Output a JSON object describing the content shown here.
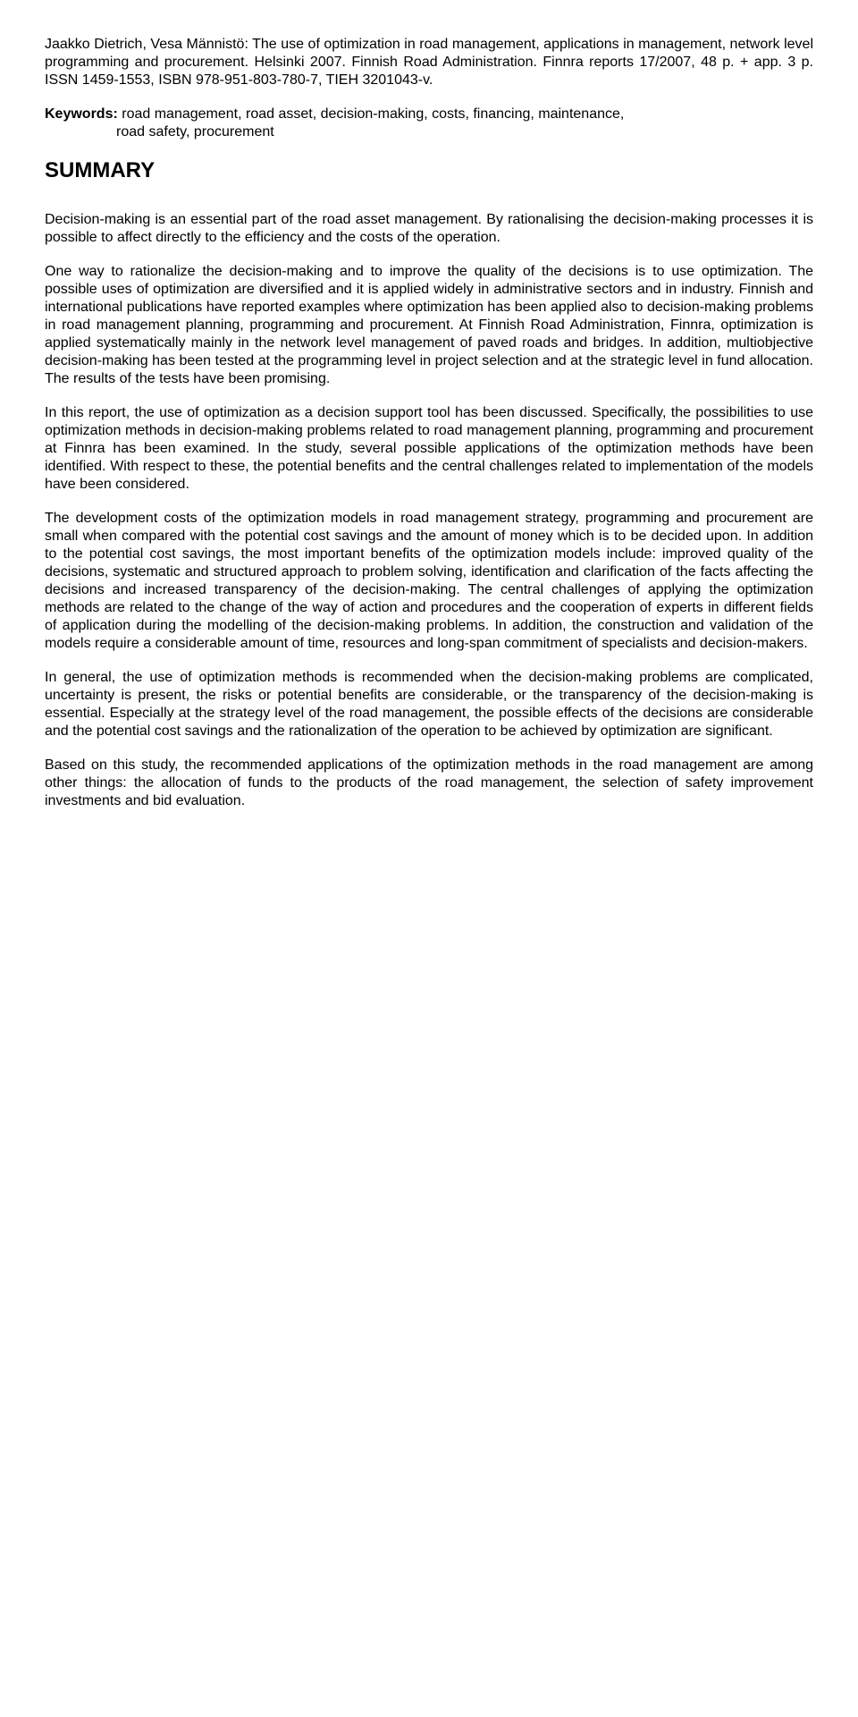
{
  "citation": {
    "authors_title": "Jaakko Dietrich, Vesa Männistö: The use of optimization in road management, applications in management, network level programming and procurement.",
    "pub_info": "Helsinki 2007. Finnish Road Administration. Finnra reports 17/2007, 48 p. + app. 3 p. ISSN 1459-1553, ISBN 978-951-803-780-7, TIEH 3201043-v."
  },
  "keywords": {
    "label": "Keywords:",
    "line1": "road management, road asset, decision-making, costs, financing, maintenance,",
    "line2": "road safety, procurement"
  },
  "summary_heading": "SUMMARY",
  "paragraphs": {
    "p1": "Decision-making is an essential part of the road asset management. By rationalising the decision-making processes it is possible to affect directly to the efficiency and the costs of the operation.",
    "p2": "One way to rationalize the decision-making and to improve the quality of the decisions is to use optimization. The possible uses of optimization are diversified and it is applied widely in administrative sectors and in industry. Finnish and international publications have reported examples where optimization has been applied also to decision-making problems in road management planning, programming and procurement. At Finnish Road Administration, Finnra, optimization is applied systematically mainly in the network level management of paved roads and bridges. In addition, multiobjective decision-making has been tested at the programming level in project selection and at the strategic level in fund allocation. The results of the tests have been promising.",
    "p3": "In this report, the use of optimization as a decision support tool has been discussed. Specifically, the possibilities to use optimization methods in decision-making problems related to road management planning, programming and procurement at Finnra has been examined. In the study, several possible applications of the optimization methods have been identified. With respect to these, the potential benefits and the central challenges related to implementation of the models have been considered.",
    "p4": "The development costs of the optimization models in road management strategy, programming and procurement are small when compared with the potential cost savings and the amount of money which is to be decided upon. In addition to the potential cost savings, the most important benefits of the optimization models include: improved quality of the decisions, systematic and structured approach to problem solving, identification and clarification of the facts affecting the decisions and increased transparency of the decision-making. The central challenges of applying the optimization methods are related to the change of the way of action and procedures and the cooperation of experts in different fields of application during the modelling of the decision-making problems. In addition, the construction and validation of the models require a considerable amount of time, resources and long-span commitment of specialists and decision-makers.",
    "p5": "In general, the use of optimization methods is recommended when the decision-making problems are complicated, uncertainty is present, the risks or potential benefits are considerable, or the transparency of the decision-making is essential. Especially at the strategy level of the road management, the possible effects of the decisions are considerable and the potential cost savings and the rationalization of the operation to be achieved by optimization are significant.",
    "p6": "Based on this study, the recommended applications of the optimization methods in the road management are among other things: the allocation of funds to the products of the road management, the selection of safety improvement investments and bid evaluation."
  }
}
